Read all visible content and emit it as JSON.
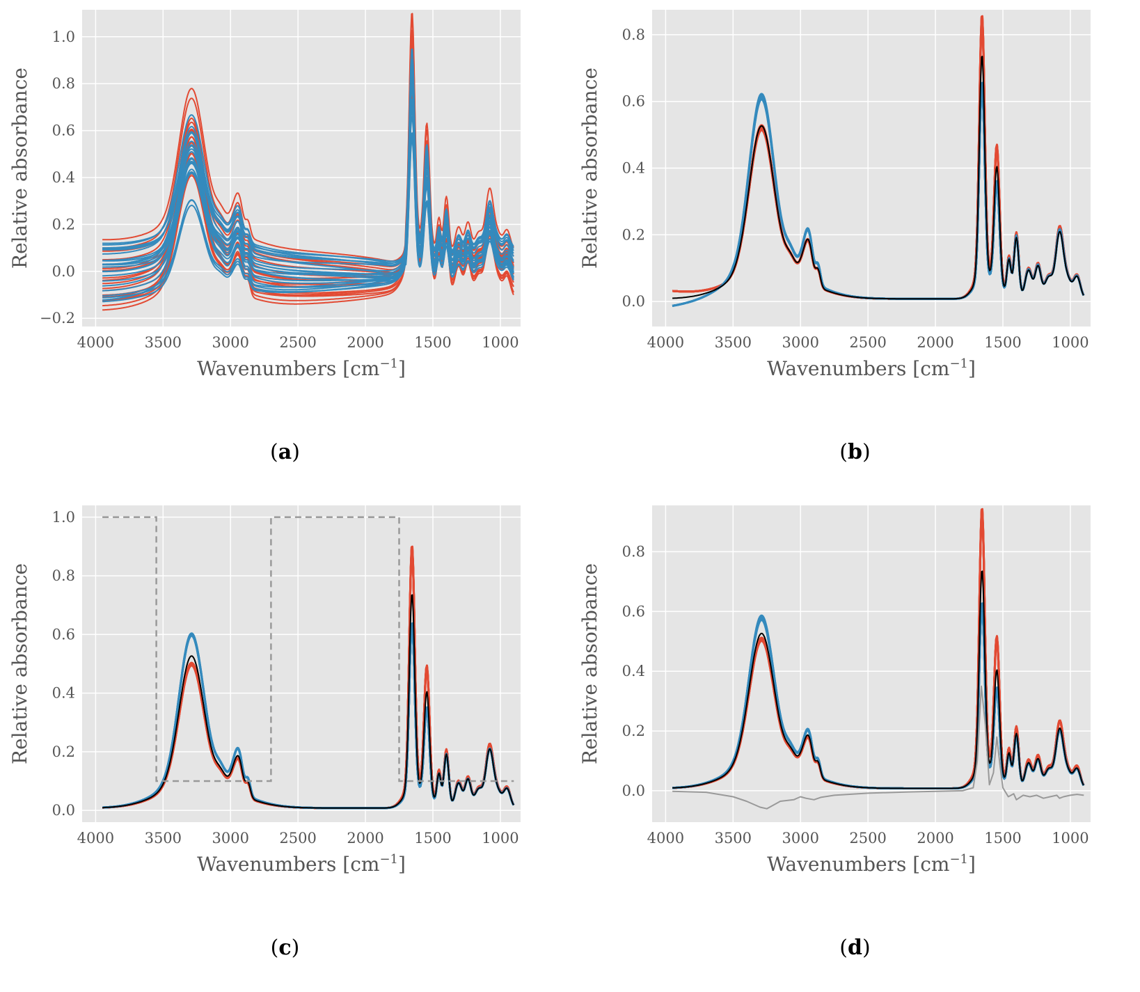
{
  "colors": {
    "background": "#e5e5e5",
    "grid": "#ffffff",
    "red": "#e24a33",
    "blue": "#348abd",
    "mean": "#000000",
    "grey": "#999999"
  },
  "chart_data": [
    {
      "panel": "a",
      "label_open": "(",
      "label_letter": "a",
      "label_close": ")",
      "type": "line",
      "xlabel_main": "Wavenumbers [cm",
      "xlabel_sup": "−1",
      "xlabel_tail": "]",
      "ylabel": "Relative absorbance",
      "xlim": [
        4100,
        850
      ],
      "ylim": [
        -0.235,
        1.115
      ],
      "xticks": [
        4000,
        3500,
        3000,
        2500,
        2000,
        1500,
        1000
      ],
      "xtick_labels": [
        "4000",
        "3500",
        "3000",
        "2500",
        "2000",
        "1500",
        "1000"
      ],
      "yticks": [
        -0.2,
        0.0,
        0.2,
        0.4,
        0.6,
        0.8,
        1.0
      ],
      "ytick_labels": [
        "−0.2",
        "0.0",
        "0.2",
        "0.4",
        "0.6",
        "0.8",
        "1.0"
      ],
      "grid": true,
      "series": [
        {
          "name": "raw spectra group 1 (red)",
          "color": "red",
          "count": 18,
          "offset_range": [
            -0.17,
            0.22
          ],
          "peak_scale_range": [
            0.75,
            1.15
          ],
          "linewidth": 2
        },
        {
          "name": "raw spectra group 2 (blue)",
          "color": "blue",
          "count": 22,
          "offset_range": [
            -0.14,
            0.13
          ],
          "peak_scale_range": [
            0.62,
            0.95
          ],
          "linewidth": 2
        }
      ]
    },
    {
      "panel": "b",
      "label_open": "(",
      "label_letter": "b",
      "label_close": ")",
      "type": "line",
      "xlabel_main": "Wavenumbers [cm",
      "xlabel_sup": "−1",
      "xlabel_tail": "]",
      "ylabel": "Relative absorbance",
      "xlim": [
        4100,
        850
      ],
      "ylim": [
        -0.075,
        0.875
      ],
      "xticks": [
        4000,
        3500,
        3000,
        2500,
        2000,
        1500,
        1000
      ],
      "xtick_labels": [
        "4000",
        "3500",
        "3000",
        "2500",
        "2000",
        "1500",
        "1000"
      ],
      "yticks": [
        0.0,
        0.2,
        0.4,
        0.6,
        0.8
      ],
      "ytick_labels": [
        "0.0",
        "0.2",
        "0.4",
        "0.6",
        "0.8"
      ],
      "grid": true,
      "series": [
        {
          "name": "corrected spectra group 1 (red)",
          "color": "red",
          "count": 8,
          "baseline": 0.03,
          "peak_scale": 0.99,
          "amide_scale": 1.15,
          "spread": 0.03,
          "linewidth": 3
        },
        {
          "name": "corrected spectra group 2 (blue)",
          "color": "blue",
          "count": 8,
          "baseline": -0.015,
          "peak_scale": 1.17,
          "amide_scale": 0.88,
          "spread": 0.03,
          "linewidth": 3
        },
        {
          "name": "mean spectrum",
          "color": "mean",
          "count": 1,
          "baseline": 0.008,
          "peak_scale": 1.0,
          "amide_scale": 1.0,
          "spread": 0,
          "linewidth": 2
        }
      ]
    },
    {
      "panel": "c",
      "label_open": "(",
      "label_letter": "c",
      "label_close": ")",
      "type": "line",
      "xlabel_main": "Wavenumbers [cm",
      "xlabel_sup": "−1",
      "xlabel_tail": "]",
      "ylabel": "Relative absorbance",
      "xlim": [
        4100,
        850
      ],
      "ylim": [
        -0.04,
        1.04
      ],
      "xticks": [
        4000,
        3500,
        3000,
        2500,
        2000,
        1500,
        1000
      ],
      "xtick_labels": [
        "4000",
        "3500",
        "3000",
        "2500",
        "2000",
        "1500",
        "1000"
      ],
      "yticks": [
        0.0,
        0.2,
        0.4,
        0.6,
        0.8,
        1.0
      ],
      "ytick_labels": [
        "0.0",
        "0.2",
        "0.4",
        "0.6",
        "0.8",
        "1.0"
      ],
      "grid": true,
      "series": [
        {
          "name": "weighted spectra group 1 (red)",
          "color": "red",
          "count": 8,
          "baseline": 0.008,
          "peak_scale": 0.95,
          "amide_scale": 1.22,
          "spread": 0.03,
          "linewidth": 3
        },
        {
          "name": "weighted spectra group 2 (blue)",
          "color": "blue",
          "count": 8,
          "baseline": 0.008,
          "peak_scale": 1.14,
          "amide_scale": 0.86,
          "spread": 0.03,
          "linewidth": 3
        },
        {
          "name": "mean spectrum",
          "color": "mean",
          "count": 1,
          "baseline": 0.008,
          "peak_scale": 1.0,
          "amide_scale": 1.0,
          "spread": 0,
          "linewidth": 2
        }
      ],
      "weight_function": {
        "name": "region weights (dashed)",
        "color": "grey",
        "x": [
          3950,
          3550,
          3550,
          2700,
          2700,
          1750,
          1750,
          900
        ],
        "y": [
          1.0,
          1.0,
          0.1,
          0.1,
          1.0,
          1.0,
          0.1,
          0.1
        ]
      }
    },
    {
      "panel": "d",
      "label_open": "(",
      "label_letter": "d",
      "label_close": ")",
      "type": "line",
      "xlabel_main": "Wavenumbers [cm",
      "xlabel_sup": "−1",
      "xlabel_tail": "]",
      "ylabel": "Relative absorbance",
      "xlim": [
        4100,
        850
      ],
      "ylim": [
        -0.105,
        0.955
      ],
      "xticks": [
        4000,
        3500,
        3000,
        2500,
        2000,
        1500,
        1000
      ],
      "xtick_labels": [
        "4000",
        "3500",
        "3000",
        "2500",
        "2000",
        "1500",
        "1000"
      ],
      "yticks": [
        0.0,
        0.2,
        0.4,
        0.6,
        0.8
      ],
      "ytick_labels": [
        "0.0",
        "0.2",
        "0.4",
        "0.6",
        "0.8"
      ],
      "grid": true,
      "series": [
        {
          "name": "spectra group 1 (red)",
          "color": "red",
          "count": 8,
          "baseline": 0.008,
          "peak_scale": 0.96,
          "amide_scale": 1.27,
          "spread": 0.03,
          "linewidth": 3
        },
        {
          "name": "spectra group 2 (blue)",
          "color": "blue",
          "count": 8,
          "baseline": 0.008,
          "peak_scale": 1.1,
          "amide_scale": 0.84,
          "spread": 0.03,
          "linewidth": 3
        },
        {
          "name": "mean spectrum",
          "color": "mean",
          "count": 1,
          "baseline": 0.008,
          "peak_scale": 1.0,
          "amide_scale": 1.0,
          "spread": 0,
          "linewidth": 2
        }
      ],
      "difference_line": {
        "name": "difference spectrum",
        "color": "grey",
        "x": [
          3950,
          3700,
          3500,
          3400,
          3300,
          3250,
          3150,
          3050,
          3000,
          2960,
          2900,
          2850,
          2750,
          2500,
          2200,
          2000,
          1800,
          1720,
          1690,
          1660,
          1630,
          1600,
          1570,
          1545,
          1520,
          1500,
          1460,
          1420,
          1400,
          1350,
          1300,
          1250,
          1200,
          1150,
          1100,
          1080,
          1050,
          1000,
          950,
          900
        ],
        "y": [
          -0.002,
          -0.005,
          -0.02,
          -0.035,
          -0.055,
          -0.06,
          -0.035,
          -0.03,
          -0.02,
          -0.025,
          -0.03,
          -0.022,
          -0.015,
          -0.008,
          -0.004,
          -0.002,
          0.0,
          0.01,
          0.1,
          0.35,
          0.22,
          0.02,
          0.06,
          0.18,
          0.08,
          0.01,
          -0.02,
          -0.01,
          -0.03,
          -0.015,
          -0.02,
          -0.015,
          -0.025,
          -0.02,
          -0.015,
          -0.025,
          -0.02,
          -0.015,
          -0.012,
          -0.015
        ]
      }
    }
  ]
}
